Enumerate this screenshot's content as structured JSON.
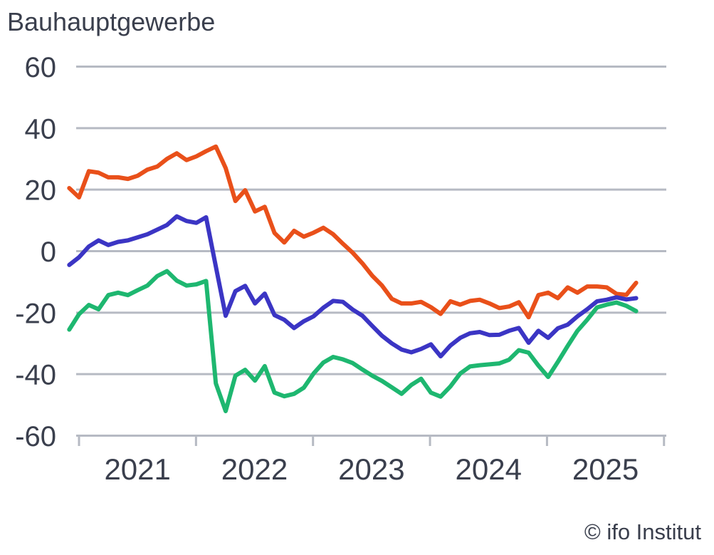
{
  "title": "Bauhauptgewerbe",
  "attribution": "© ifo Institut",
  "colors": {
    "background": "#ffffff",
    "text": "#3a3f4d",
    "grid": "#b6bac3",
    "orange": "#e9501a",
    "blue": "#3b35c4",
    "green": "#1eb770"
  },
  "chart_data": {
    "type": "line",
    "title": "Bauhauptgewerbe",
    "grid": true,
    "legend_position": "none",
    "x_axis": {
      "year_labels": [
        "2021",
        "2022",
        "2023",
        "2024",
        "2025"
      ],
      "interval": "monthly",
      "start_month": "2020-12",
      "end_month": "2025-10"
    },
    "y_axis": {
      "tick_labels": [
        60,
        40,
        20,
        0,
        -20,
        -40,
        -60
      ],
      "range": [
        -60,
        60
      ]
    },
    "series": [
      {
        "name": "orange-line",
        "color": "#e9501a",
        "values": [
          20.5,
          17.5,
          26,
          25.5,
          24,
          24,
          23.5,
          24.5,
          26.5,
          27.5,
          30,
          31.8,
          29.6,
          30.8,
          32.5,
          34,
          27,
          16.3,
          19.8,
          12.9,
          14.4,
          5.9,
          2.8,
          6.6,
          4.7,
          6,
          7.6,
          5.5,
          2.4,
          -0.5,
          -4,
          -8,
          -11.2,
          -15.5,
          -17,
          -17,
          -16.5,
          -18.2,
          -20.4,
          -16.3,
          -17.4,
          -16.2,
          -15.8,
          -17,
          -18.5,
          -18,
          -16.6,
          -21.5,
          -14.3,
          -13.5,
          -15.3,
          -11.8,
          -13.5,
          -11.5,
          -11.5,
          -11.8,
          -13.9,
          -14.2,
          -10.3
        ]
      },
      {
        "name": "blue-line",
        "color": "#3b35c4",
        "values": [
          -4.5,
          -2,
          1.5,
          3.5,
          2,
          3,
          3.5,
          4.5,
          5.5,
          7,
          8.5,
          11.3,
          9.8,
          9.2,
          11,
          -5,
          -21,
          -13,
          -11.3,
          -17,
          -13.8,
          -20.8,
          -22.3,
          -25,
          -22.8,
          -21.2,
          -18.4,
          -16.2,
          -16.5,
          -19,
          -21,
          -24.3,
          -27.5,
          -30,
          -32,
          -32.9,
          -31.8,
          -30.3,
          -34.2,
          -30.7,
          -28.2,
          -26.7,
          -26.3,
          -27.3,
          -27.2,
          -25.9,
          -25,
          -29.8,
          -25.9,
          -28.2,
          -25.1,
          -23.9,
          -21.2,
          -18.9,
          -16.3,
          -15.8,
          -15,
          -15.7,
          -15.3
        ]
      },
      {
        "name": "green-line",
        "color": "#1eb770",
        "values": [
          -25.5,
          -20.5,
          -17.5,
          -18.9,
          -14.3,
          -13.5,
          -14.3,
          -12.7,
          -11.2,
          -8.1,
          -6.5,
          -9.6,
          -11.2,
          -10.8,
          -9.7,
          -43,
          -52,
          -40.5,
          -38.6,
          -42.1,
          -37.4,
          -46,
          -47.2,
          -46.4,
          -44.4,
          -39.8,
          -36.2,
          -34.4,
          -35.2,
          -36.4,
          -38.5,
          -40.5,
          -42.2,
          -44.3,
          -46.4,
          -43.5,
          -41.5,
          -46,
          -47.3,
          -44,
          -39.8,
          -37.5,
          -37.1,
          -36.8,
          -36.5,
          -35.3,
          -32.2,
          -33,
          -37.2,
          -40.9,
          -36,
          -30.8,
          -25.9,
          -22.3,
          -18.3,
          -17.4,
          -16.7,
          -17.8,
          -19.5
        ]
      }
    ]
  }
}
